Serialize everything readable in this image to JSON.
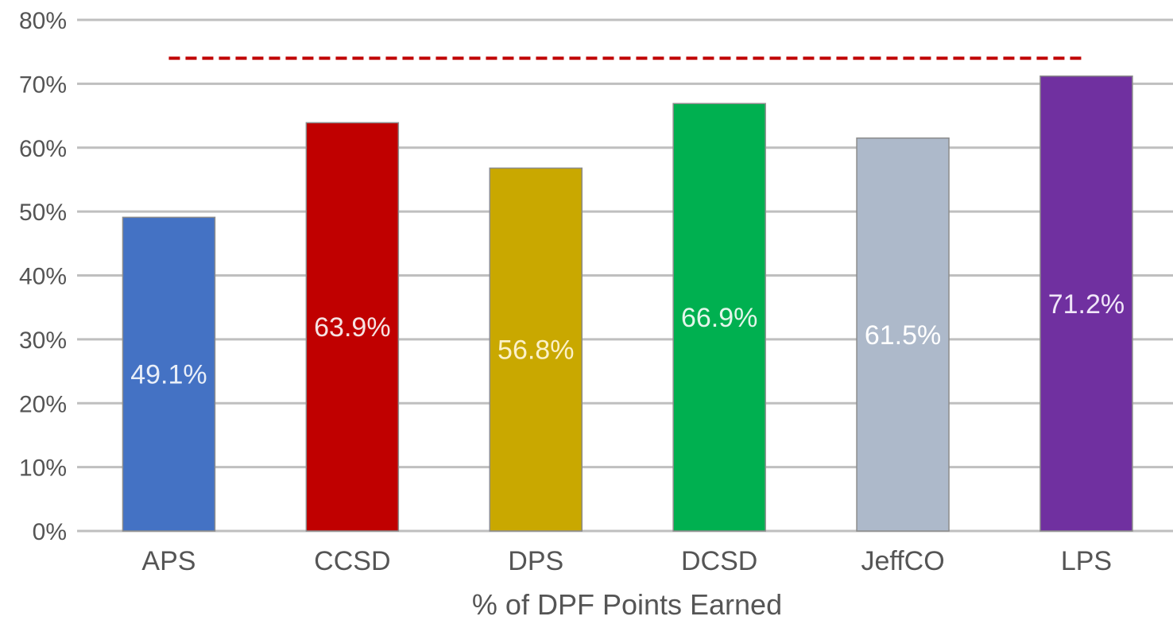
{
  "chart_data": {
    "type": "bar",
    "title": "",
    "xlabel": "% of DPF Points Earned",
    "ylabel": "",
    "ylim": [
      0,
      80
    ],
    "y_ticks": [
      0,
      10,
      20,
      30,
      40,
      50,
      60,
      70,
      80
    ],
    "y_tick_labels": [
      "0%",
      "10%",
      "20%",
      "30%",
      "40%",
      "50%",
      "60%",
      "70%",
      "80%"
    ],
    "grid": true,
    "legend": "none",
    "categories": [
      "APS",
      "CCSD",
      "DPS",
      "DCSD",
      "JeffCO",
      "LPS"
    ],
    "values": [
      49.1,
      63.9,
      56.8,
      66.9,
      61.5,
      71.2
    ],
    "data_labels": [
      "49.1%",
      "63.9%",
      "56.8%",
      "66.9%",
      "61.5%",
      "71.2%"
    ],
    "data_label_colors": [
      "#e8eef8",
      "#f6e3e3",
      "#fbf1c8",
      "#e3f6ea",
      "#ffffff",
      "#f0e6f8"
    ],
    "bar_colors": [
      "#4472c4",
      "#c00000",
      "#c9a800",
      "#00b050",
      "#adb9ca",
      "#7030a0"
    ],
    "reference_line": {
      "value": 74,
      "color": "#c00000",
      "style": "dashed"
    },
    "colors": {
      "gridline": "#bfbfbf",
      "text": "#555555"
    }
  }
}
